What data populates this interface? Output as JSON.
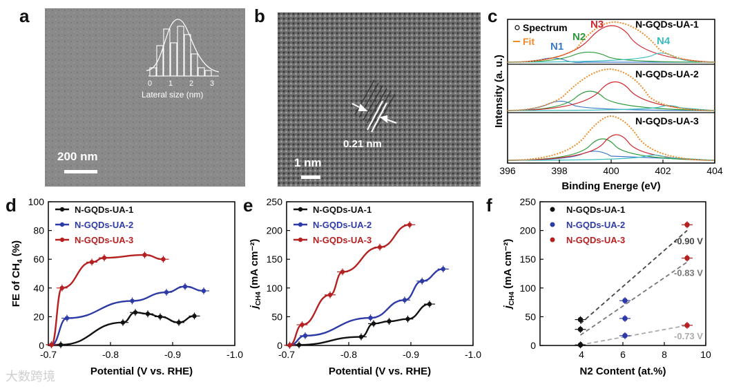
{
  "panels": {
    "a": {
      "letter": "a",
      "scale_bar": "200 nm",
      "inset": {
        "xlabel": "Lateral size (nm)",
        "ticks": [
          "0",
          "1",
          "2",
          "3"
        ],
        "hist_values": [
          0.15,
          0.55,
          0.85,
          0.6,
          0.9,
          0.75,
          0.4,
          0.15,
          0.1
        ]
      }
    },
    "b": {
      "letter": "b",
      "spacing": "0.21 nm",
      "scale_bar": "1 nm"
    },
    "c": {
      "letter": "c",
      "ylabel": "Intensity (a. u.)",
      "xlabel": "Binding Energe (eV)",
      "xticks": [
        "396",
        "398",
        "400",
        "402",
        "404"
      ],
      "legend": {
        "spectrum": "Spectrum",
        "fit": "Fit"
      },
      "peaks": {
        "n1": "N1",
        "n2": "N2",
        "n3": "N3",
        "n4": "N4"
      },
      "samples": [
        "N-GQDs-UA-1",
        "N-GQDs-UA-2",
        "N-GQDs-UA-3"
      ]
    },
    "d": {
      "letter": "d"
    },
    "e": {
      "letter": "e"
    },
    "f": {
      "letter": "f"
    }
  },
  "colors": {
    "ua1": "#111111",
    "ua2": "#2e3aa6",
    "ua3": "#b52020",
    "n1": "#3a78c9",
    "n2": "#2e9a3a",
    "n3": "#d0262d",
    "n4": "#3bbcc0",
    "fit": "#f08a24"
  },
  "watermark": "大数跨境",
  "chart_data": [
    {
      "id": "d",
      "type": "line",
      "xlabel": "Potential (V vs. RHE)",
      "ylabel": "FE of CH",
      "ylabel_sub": "4",
      "ylabel_unit": "(%)",
      "xlim": [
        -0.7,
        -1.0
      ],
      "ylim": [
        0,
        100
      ],
      "xticks": [
        -0.7,
        -0.8,
        -0.9,
        -1.0
      ],
      "xticklabels": [
        "-0.7",
        "-0.8",
        "-0.9",
        "-1.0"
      ],
      "yticks": [
        0,
        20,
        40,
        60,
        80,
        100
      ],
      "yticklabels": [
        "0",
        "20",
        "40",
        "60",
        "80",
        "100"
      ],
      "series": [
        {
          "name": "N-GQDs-UA-1",
          "color": "#111111",
          "x": [
            -0.705,
            -0.72,
            -0.82,
            -0.84,
            -0.86,
            -0.88,
            -0.91,
            -0.935
          ],
          "y": [
            0.5,
            0.5,
            16,
            23,
            22,
            20,
            16,
            20.5
          ]
        },
        {
          "name": "N-GQDs-UA-2",
          "color": "#2e3aa6",
          "x": [
            -0.705,
            -0.73,
            -0.835,
            -0.89,
            -0.92,
            -0.95
          ],
          "y": [
            0.5,
            19,
            31,
            37,
            41,
            38
          ]
        },
        {
          "name": "N-GQDs-UA-3",
          "color": "#b52020",
          "x": [
            -0.705,
            -0.722,
            -0.77,
            -0.79,
            -0.855,
            -0.885
          ],
          "y": [
            0.5,
            40,
            58,
            61,
            63,
            60
          ]
        }
      ]
    },
    {
      "id": "e",
      "type": "line",
      "xlabel": "Potential (V vs. RHE)",
      "ylabel": "j",
      "ylabel_sub": "CH4",
      "ylabel_unit": "(mA cm⁻²)",
      "xlim": [
        -0.7,
        -1.0
      ],
      "ylim": [
        0,
        250
      ],
      "xticks": [
        -0.7,
        -0.8,
        -0.9,
        -1.0
      ],
      "xticklabels": [
        "-0.7",
        "-0.8",
        "-0.9",
        "-1.0"
      ],
      "yticks": [
        0,
        50,
        100,
        150,
        200,
        250
      ],
      "yticklabels": [
        "0",
        "50",
        "100",
        "150",
        "200",
        "250"
      ],
      "series": [
        {
          "name": "N-GQDs-UA-1",
          "color": "#111111",
          "x": [
            -0.705,
            -0.72,
            -0.82,
            -0.84,
            -0.865,
            -0.895,
            -0.93
          ],
          "y": [
            0.5,
            1,
            15,
            38,
            42,
            46,
            72
          ]
        },
        {
          "name": "N-GQDs-UA-2",
          "color": "#2e3aa6",
          "x": [
            -0.705,
            -0.73,
            -0.835,
            -0.89,
            -0.918,
            -0.952
          ],
          "y": [
            0.5,
            17,
            48,
            79,
            112,
            133
          ]
        },
        {
          "name": "N-GQDs-UA-3",
          "color": "#b52020",
          "x": [
            -0.705,
            -0.725,
            -0.77,
            -0.79,
            -0.85,
            -0.898
          ],
          "y": [
            0.5,
            36,
            88,
            128,
            171,
            210
          ]
        }
      ]
    },
    {
      "id": "f",
      "type": "scatter",
      "xlabel": "N2 Content (at.%)",
      "ylabel": "j",
      "ylabel_sub": "CH4",
      "ylabel_unit": "(mA cm⁻²)",
      "xlim": [
        2,
        10
      ],
      "ylim": [
        0,
        250
      ],
      "xticks": [
        4,
        6,
        8,
        10
      ],
      "xticklabels": [
        "4",
        "6",
        "8",
        "10"
      ],
      "yticks": [
        0,
        50,
        100,
        150,
        200,
        250
      ],
      "yticklabels": [
        "0",
        "50",
        "100",
        "150",
        "200",
        "250"
      ],
      "series": [
        {
          "name": "N-GQDs-UA-1",
          "color": "#111111",
          "x": [
            3.95,
            3.95,
            3.95
          ],
          "y": [
            1,
            28,
            45
          ]
        },
        {
          "name": "N-GQDs-UA-2",
          "color": "#2e3aa6",
          "x": [
            6.1,
            6.1,
            6.1
          ],
          "y": [
            17,
            47,
            78
          ]
        },
        {
          "name": "N-GQDs-UA-3",
          "color": "#b52020",
          "x": [
            9.1,
            9.1,
            9.1
          ],
          "y": [
            35,
            152,
            210
          ]
        }
      ],
      "fits": [
        {
          "label": "-0.90 V",
          "color": "#444444",
          "x": [
            3.95,
            9.1
          ],
          "y": [
            38,
            200
          ]
        },
        {
          "label": "-0.83 V",
          "color": "#777777",
          "x": [
            3.95,
            9.1
          ],
          "y": [
            18,
            145
          ]
        },
        {
          "label": "-0.73 V",
          "color": "#aaaaaa",
          "x": [
            3.95,
            9.1
          ],
          "y": [
            1,
            35
          ]
        }
      ]
    }
  ]
}
